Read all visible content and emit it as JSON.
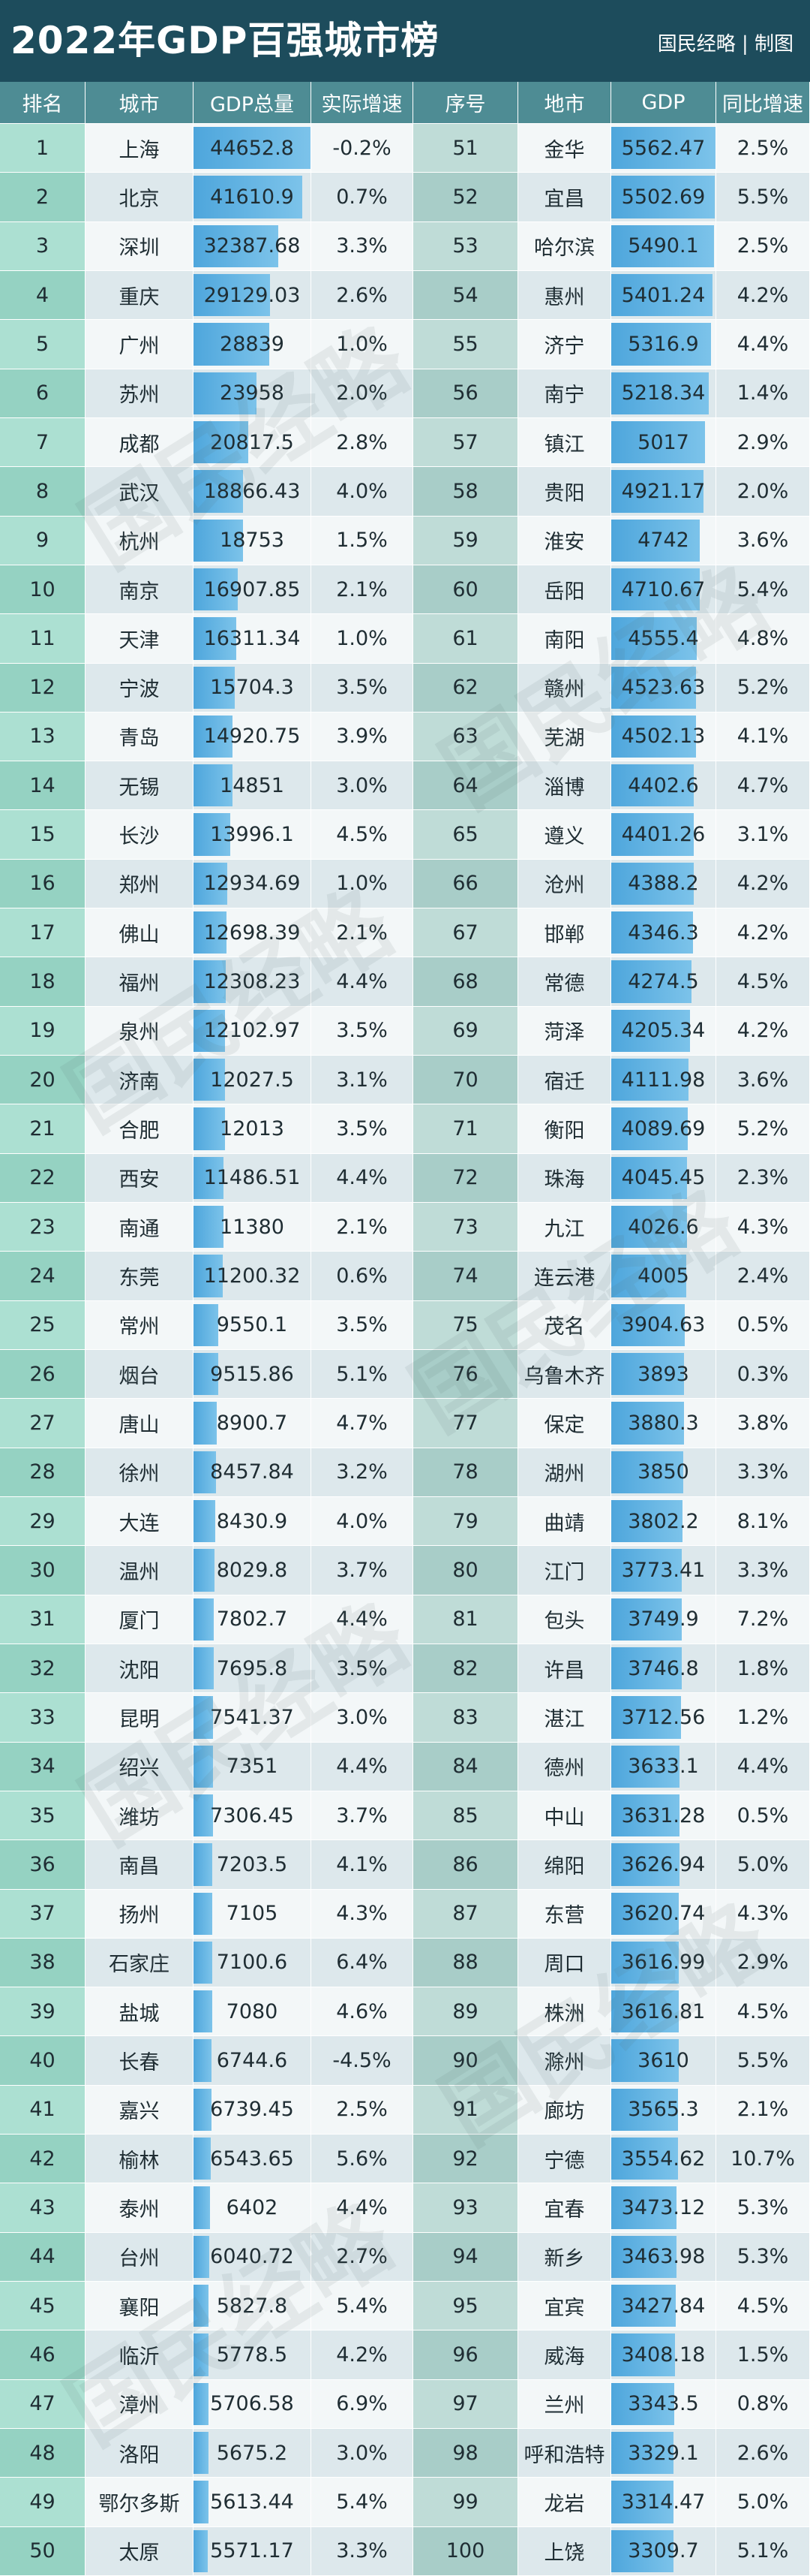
{
  "header": {
    "title": "2022年GDP百强城市榜",
    "credit": "国民经略 | 制图"
  },
  "watermark": "国民经略",
  "table": {
    "columns": [
      "排名",
      "城市",
      "GDP总量",
      "实际增速",
      "序号",
      "地市",
      "GDP",
      "同比增速"
    ],
    "rows": [
      [
        1,
        "上海",
        44652.8,
        "-0.2%",
        51,
        "金华",
        5562.47,
        "2.5%"
      ],
      [
        2,
        "北京",
        41610.9,
        "0.7%",
        52,
        "宜昌",
        5502.69,
        "5.5%"
      ],
      [
        3,
        "深圳",
        32387.68,
        "3.3%",
        53,
        "哈尔滨",
        5490.1,
        "2.5%"
      ],
      [
        4,
        "重庆",
        29129.03,
        "2.6%",
        54,
        "惠州",
        5401.24,
        "4.2%"
      ],
      [
        5,
        "广州",
        28839,
        "1.0%",
        55,
        "济宁",
        5316.9,
        "4.4%"
      ],
      [
        6,
        "苏州",
        23958,
        "2.0%",
        56,
        "南宁",
        5218.34,
        "1.4%"
      ],
      [
        7,
        "成都",
        20817.5,
        "2.8%",
        57,
        "镇江",
        5017,
        "2.9%"
      ],
      [
        8,
        "武汉",
        18866.43,
        "4.0%",
        58,
        "贵阳",
        4921.17,
        "2.0%"
      ],
      [
        9,
        "杭州",
        18753,
        "1.5%",
        59,
        "淮安",
        4742,
        "3.6%"
      ],
      [
        10,
        "南京",
        16907.85,
        "2.1%",
        60,
        "岳阳",
        4710.67,
        "5.4%"
      ],
      [
        11,
        "天津",
        16311.34,
        "1.0%",
        61,
        "南阳",
        4555.4,
        "4.8%"
      ],
      [
        12,
        "宁波",
        15704.3,
        "3.5%",
        62,
        "赣州",
        4523.63,
        "5.2%"
      ],
      [
        13,
        "青岛",
        14920.75,
        "3.9%",
        63,
        "芜湖",
        4502.13,
        "4.1%"
      ],
      [
        14,
        "无锡",
        14851,
        "3.0%",
        64,
        "淄博",
        4402.6,
        "4.7%"
      ],
      [
        15,
        "长沙",
        13996.1,
        "4.5%",
        65,
        "遵义",
        4401.26,
        "3.1%"
      ],
      [
        16,
        "郑州",
        12934.69,
        "1.0%",
        66,
        "沧州",
        4388.2,
        "4.2%"
      ],
      [
        17,
        "佛山",
        12698.39,
        "2.1%",
        67,
        "邯郸",
        4346.3,
        "4.2%"
      ],
      [
        18,
        "福州",
        12308.23,
        "4.4%",
        68,
        "常德",
        4274.5,
        "4.5%"
      ],
      [
        19,
        "泉州",
        12102.97,
        "3.5%",
        69,
        "菏泽",
        4205.34,
        "4.2%"
      ],
      [
        20,
        "济南",
        12027.5,
        "3.1%",
        70,
        "宿迁",
        4111.98,
        "3.6%"
      ],
      [
        21,
        "合肥",
        12013,
        "3.5%",
        71,
        "衡阳",
        4089.69,
        "5.2%"
      ],
      [
        22,
        "西安",
        11486.51,
        "4.4%",
        72,
        "珠海",
        4045.45,
        "2.3%"
      ],
      [
        23,
        "南通",
        11380,
        "2.1%",
        73,
        "九江",
        4026.6,
        "4.3%"
      ],
      [
        24,
        "东莞",
        11200.32,
        "0.6%",
        74,
        "连云港",
        4005,
        "2.4%"
      ],
      [
        25,
        "常州",
        9550.1,
        "3.5%",
        75,
        "茂名",
        3904.63,
        "0.5%"
      ],
      [
        26,
        "烟台",
        9515.86,
        "5.1%",
        76,
        "乌鲁木齐",
        3893,
        "0.3%"
      ],
      [
        27,
        "唐山",
        8900.7,
        "4.7%",
        77,
        "保定",
        3880.3,
        "3.8%"
      ],
      [
        28,
        "徐州",
        8457.84,
        "3.2%",
        78,
        "湖州",
        3850,
        "3.3%"
      ],
      [
        29,
        "大连",
        8430.9,
        "4.0%",
        79,
        "曲靖",
        3802.2,
        "8.1%"
      ],
      [
        30,
        "温州",
        8029.8,
        "3.7%",
        80,
        "江门",
        3773.41,
        "3.3%"
      ],
      [
        31,
        "厦门",
        7802.7,
        "4.4%",
        81,
        "包头",
        3749.9,
        "7.2%"
      ],
      [
        32,
        "沈阳",
        7695.8,
        "3.5%",
        82,
        "许昌",
        3746.8,
        "1.8%"
      ],
      [
        33,
        "昆明",
        7541.37,
        "3.0%",
        83,
        "湛江",
        3712.56,
        "1.2%"
      ],
      [
        34,
        "绍兴",
        7351,
        "4.4%",
        84,
        "德州",
        3633.1,
        "4.4%"
      ],
      [
        35,
        "潍坊",
        7306.45,
        "3.7%",
        85,
        "中山",
        3631.28,
        "0.5%"
      ],
      [
        36,
        "南昌",
        7203.5,
        "4.1%",
        86,
        "绵阳",
        3626.94,
        "5.0%"
      ],
      [
        37,
        "扬州",
        7105,
        "4.3%",
        87,
        "东营",
        3620.74,
        "4.3%"
      ],
      [
        38,
        "石家庄",
        7100.6,
        "6.4%",
        88,
        "周口",
        3616.99,
        "2.9%"
      ],
      [
        39,
        "盐城",
        7080,
        "4.6%",
        89,
        "株洲",
        3616.81,
        "4.5%"
      ],
      [
        40,
        "长春",
        6744.6,
        "-4.5%",
        90,
        "滁州",
        3610,
        "5.5%"
      ],
      [
        41,
        "嘉兴",
        6739.45,
        "2.5%",
        91,
        "廊坊",
        3565.3,
        "2.1%"
      ],
      [
        42,
        "榆林",
        6543.65,
        "5.6%",
        92,
        "宁德",
        3554.62,
        "10.7%"
      ],
      [
        43,
        "泰州",
        6402,
        "4.4%",
        93,
        "宜春",
        3473.12,
        "5.3%"
      ],
      [
        44,
        "台州",
        6040.72,
        "2.7%",
        94,
        "新乡",
        3463.98,
        "5.3%"
      ],
      [
        45,
        "襄阳",
        5827.8,
        "5.4%",
        95,
        "宜宾",
        3427.84,
        "4.5%"
      ],
      [
        46,
        "临沂",
        5778.5,
        "4.2%",
        96,
        "威海",
        3408.18,
        "1.5%"
      ],
      [
        47,
        "漳州",
        5706.58,
        "6.9%",
        97,
        "兰州",
        3343.5,
        "0.8%"
      ],
      [
        48,
        "洛阳",
        5675.2,
        "3.0%",
        98,
        "呼和浩特",
        3329.1,
        "2.6%"
      ],
      [
        49,
        "鄂尔多斯",
        5613.44,
        "5.4%",
        99,
        "龙岩",
        3314.47,
        "5.0%"
      ],
      [
        50,
        "太原",
        5571.17,
        "3.3%",
        100,
        "上饶",
        3309.7,
        "5.1%"
      ]
    ]
  }
}
